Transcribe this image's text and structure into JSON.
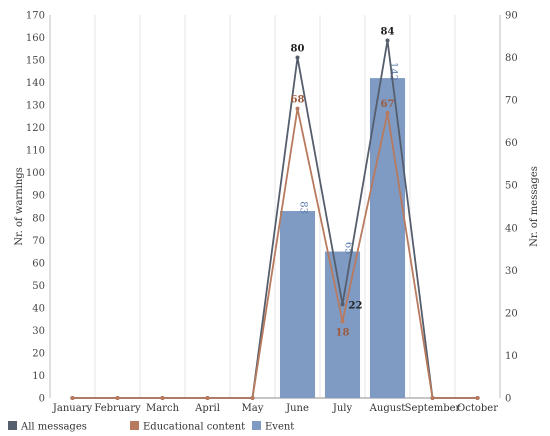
{
  "chart_data": {
    "type": "bar",
    "categories": [
      "January",
      "February",
      "March",
      "April",
      "May",
      "June",
      "July",
      "August",
      "September",
      "October"
    ],
    "y_left": {
      "label": "Nr. of warnings",
      "min": 0,
      "max": 170,
      "step": 10
    },
    "y_right": {
      "label": "Nr. of messages",
      "min": 0,
      "max": 90,
      "step": 10
    },
    "series": [
      {
        "name": "Event",
        "kind": "bar",
        "axis": "left",
        "color": "#7f9bc4",
        "values": [
          0,
          0,
          0,
          0,
          0,
          83,
          65,
          142,
          0,
          0
        ],
        "labels": [
          null,
          null,
          null,
          null,
          null,
          "83",
          "65",
          "142",
          null,
          null
        ]
      },
      {
        "name": "All messages",
        "kind": "line",
        "axis": "right",
        "color": "#555e6c",
        "values": [
          0,
          0,
          0,
          0,
          0,
          80,
          22,
          84,
          0,
          0
        ],
        "labels": [
          null,
          null,
          null,
          null,
          null,
          "80",
          "22",
          "84",
          null,
          null
        ]
      },
      {
        "name": "Educational content",
        "kind": "line",
        "axis": "right",
        "color": "#b87a5e",
        "values": [
          0,
          0,
          0,
          0,
          0,
          68,
          18,
          67,
          0,
          0
        ],
        "labels": [
          null,
          null,
          null,
          null,
          null,
          "68",
          "18",
          "67",
          null,
          null
        ]
      }
    ],
    "legend": [
      {
        "name": "All messages",
        "color": "#555e6c"
      },
      {
        "name": "Educational content",
        "color": "#b87a5e"
      },
      {
        "name": "Event",
        "color": "#7f9bc4"
      }
    ],
    "grid": {
      "vertical": true,
      "horizontal": false
    },
    "legend_position": "bottom"
  }
}
